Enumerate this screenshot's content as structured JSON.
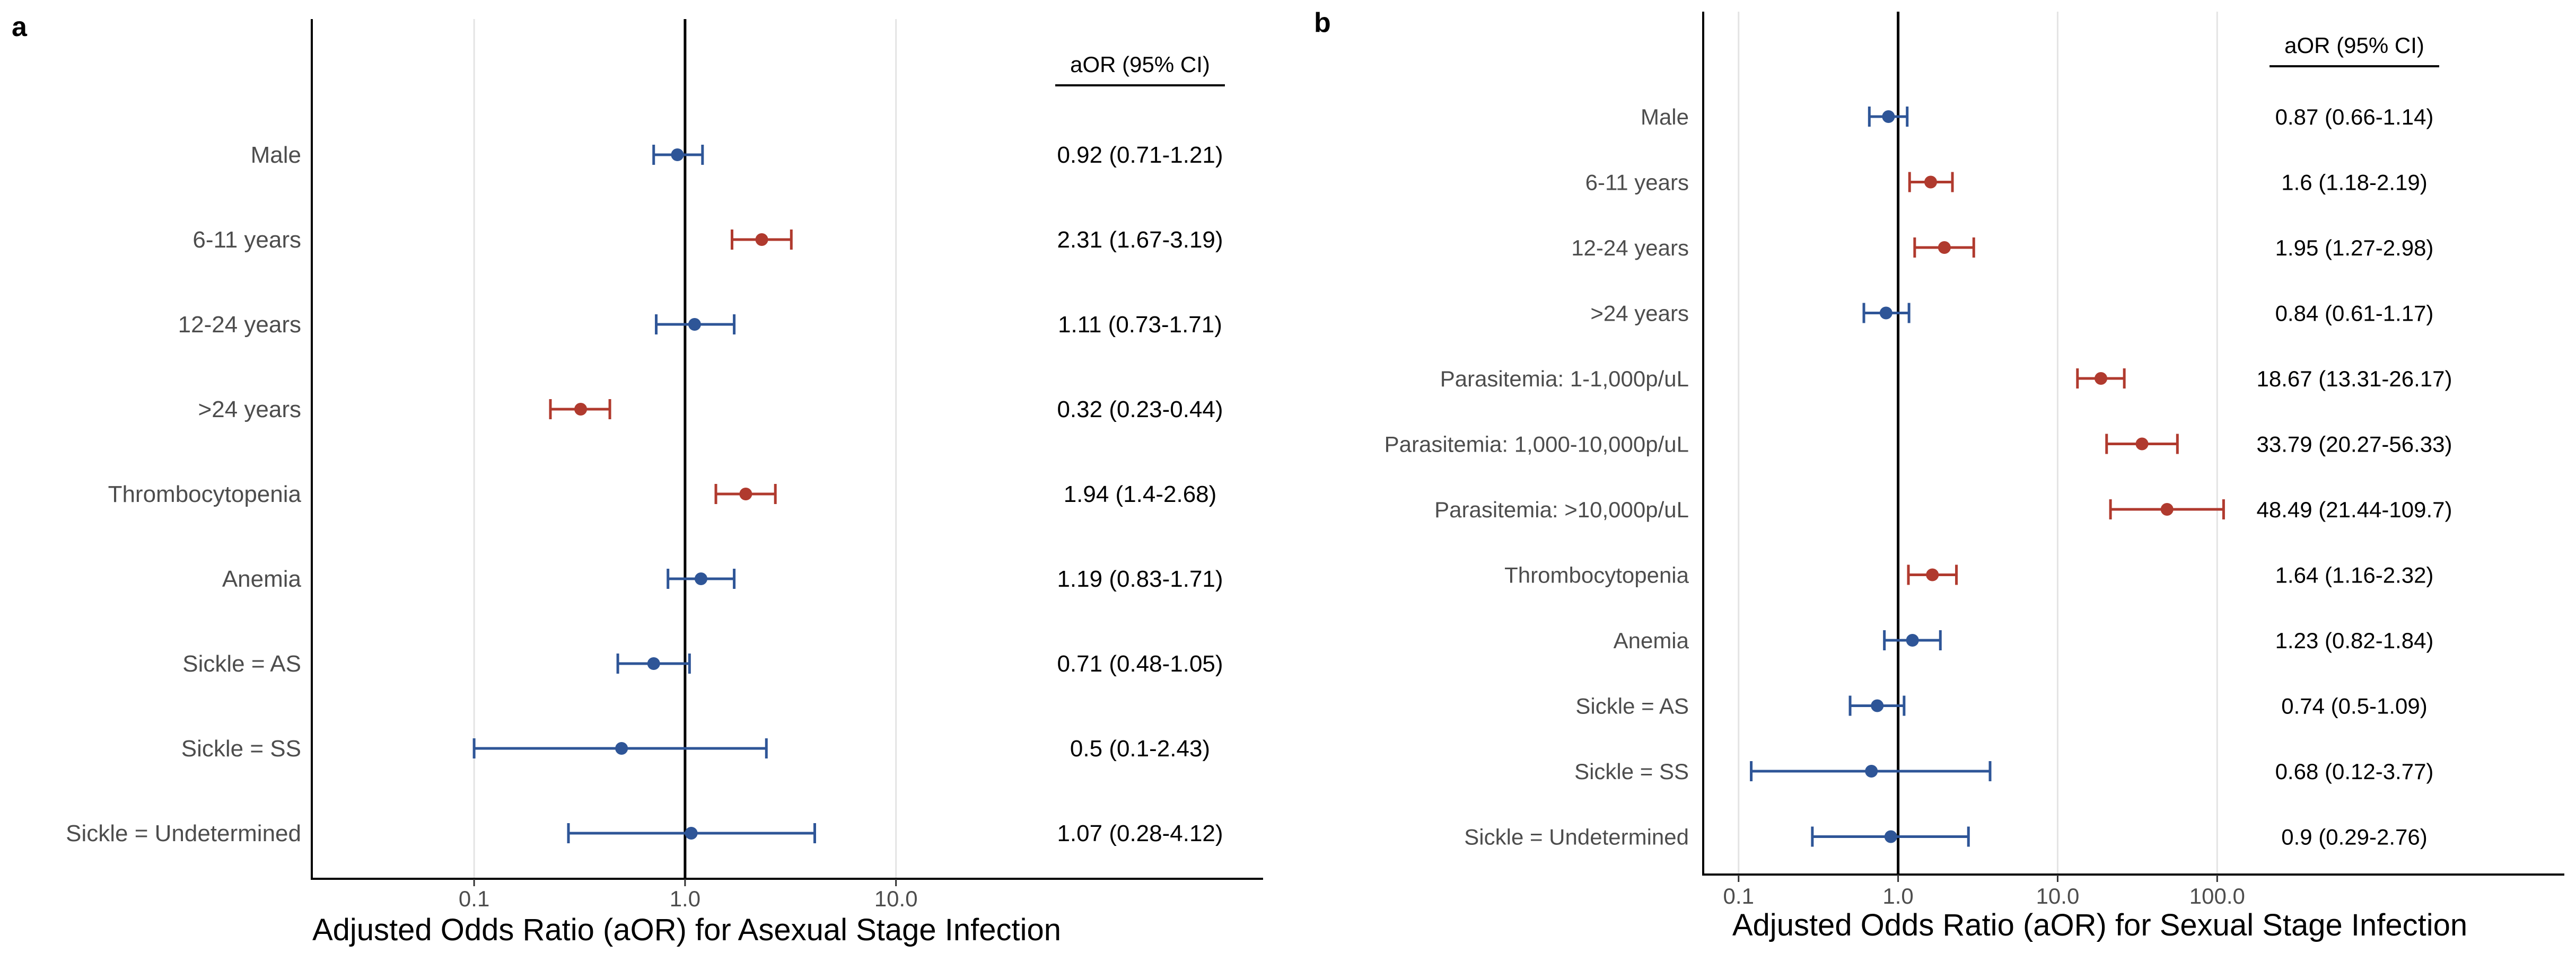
{
  "chart_data": [
    {
      "type": "forest",
      "panel_label": "a",
      "xlabel": "Adjusted Odds Ratio (aOR) for Asexual Stage Infection",
      "xscale": "log",
      "xticks": [
        "0.1",
        "1.0",
        "10.0"
      ],
      "xlim": [
        0.017,
        550
      ],
      "grid": true,
      "reference_line": 1,
      "ci_header": "aOR (95% CI)",
      "colors": {
        "significant": "#B03A2E",
        "nonsignificant": "#2E5597"
      },
      "rows": [
        {
          "label": "Male",
          "aor": 0.92,
          "lo": 0.71,
          "hi": 1.21,
          "text": "0.92 (0.71-1.21)",
          "significant": false
        },
        {
          "label": "6-11 years",
          "aor": 2.31,
          "lo": 1.67,
          "hi": 3.19,
          "text": "2.31 (1.67-3.19)",
          "significant": true
        },
        {
          "label": "12-24 years",
          "aor": 1.11,
          "lo": 0.73,
          "hi": 1.71,
          "text": "1.11 (0.73-1.71)",
          "significant": false
        },
        {
          "label": ">24 years",
          "aor": 0.32,
          "lo": 0.23,
          "hi": 0.44,
          "text": "0.32 (0.23-0.44)",
          "significant": true
        },
        {
          "label": "Thrombocytopenia",
          "aor": 1.94,
          "lo": 1.4,
          "hi": 2.68,
          "text": "1.94 (1.4-2.68)",
          "significant": true
        },
        {
          "label": "Anemia",
          "aor": 1.19,
          "lo": 0.83,
          "hi": 1.71,
          "text": "1.19 (0.83-1.71)",
          "significant": false
        },
        {
          "label": "Sickle = AS",
          "aor": 0.71,
          "lo": 0.48,
          "hi": 1.05,
          "text": "0.71 (0.48-1.05)",
          "significant": false
        },
        {
          "label": "Sickle = SS",
          "aor": 0.5,
          "lo": 0.1,
          "hi": 2.43,
          "text": "0.5 (0.1-2.43)",
          "significant": false
        },
        {
          "label": "Sickle = Undetermined",
          "aor": 1.07,
          "lo": 0.28,
          "hi": 4.12,
          "text": "1.07 (0.28-4.12)",
          "significant": false
        }
      ]
    },
    {
      "type": "forest",
      "panel_label": "b",
      "xlabel": "Adjusted Odds Ratio (aOR) for Sexual Stage Infection",
      "xscale": "log",
      "xticks": [
        "0.1",
        "1.0",
        "10.0",
        "100.0"
      ],
      "xlim": [
        0.06,
        15000
      ],
      "grid": true,
      "reference_line": 1,
      "ci_header": "aOR (95% CI)",
      "colors": {
        "significant": "#B03A2E",
        "nonsignificant": "#2E5597"
      },
      "rows": [
        {
          "label": "Male",
          "aor": 0.87,
          "lo": 0.66,
          "hi": 1.14,
          "text": "0.87 (0.66-1.14)",
          "significant": false
        },
        {
          "label": "6-11 years",
          "aor": 1.6,
          "lo": 1.18,
          "hi": 2.19,
          "text": "1.6 (1.18-2.19)",
          "significant": true
        },
        {
          "label": "12-24 years",
          "aor": 1.95,
          "lo": 1.27,
          "hi": 2.98,
          "text": "1.95 (1.27-2.98)",
          "significant": true
        },
        {
          "label": ">24 years",
          "aor": 0.84,
          "lo": 0.61,
          "hi": 1.17,
          "text": "0.84 (0.61-1.17)",
          "significant": false
        },
        {
          "label": "Parasitemia: 1-1,000p/uL",
          "aor": 18.67,
          "lo": 13.31,
          "hi": 26.17,
          "text": "18.67 (13.31-26.17)",
          "significant": true
        },
        {
          "label": "Parasitemia: 1,000-10,000p/uL",
          "aor": 33.79,
          "lo": 20.27,
          "hi": 56.33,
          "text": "33.79 (20.27-56.33)",
          "significant": true
        },
        {
          "label": "Parasitemia: >10,000p/uL",
          "aor": 48.49,
          "lo": 21.44,
          "hi": 109.7,
          "text": "48.49 (21.44-109.7)",
          "significant": true
        },
        {
          "label": "Thrombocytopenia",
          "aor": 1.64,
          "lo": 1.16,
          "hi": 2.32,
          "text": "1.64 (1.16-2.32)",
          "significant": true
        },
        {
          "label": "Anemia",
          "aor": 1.23,
          "lo": 0.82,
          "hi": 1.84,
          "text": "1.23 (0.82-1.84)",
          "significant": false
        },
        {
          "label": "Sickle = AS",
          "aor": 0.74,
          "lo": 0.5,
          "hi": 1.09,
          "text": "0.74 (0.5-1.09)",
          "significant": false
        },
        {
          "label": "Sickle = SS",
          "aor": 0.68,
          "lo": 0.12,
          "hi": 3.77,
          "text": "0.68 (0.12-3.77)",
          "significant": false
        },
        {
          "label": "Sickle = Undetermined",
          "aor": 0.9,
          "lo": 0.29,
          "hi": 2.76,
          "text": "0.9 (0.29-2.76)",
          "significant": false
        }
      ]
    }
  ]
}
